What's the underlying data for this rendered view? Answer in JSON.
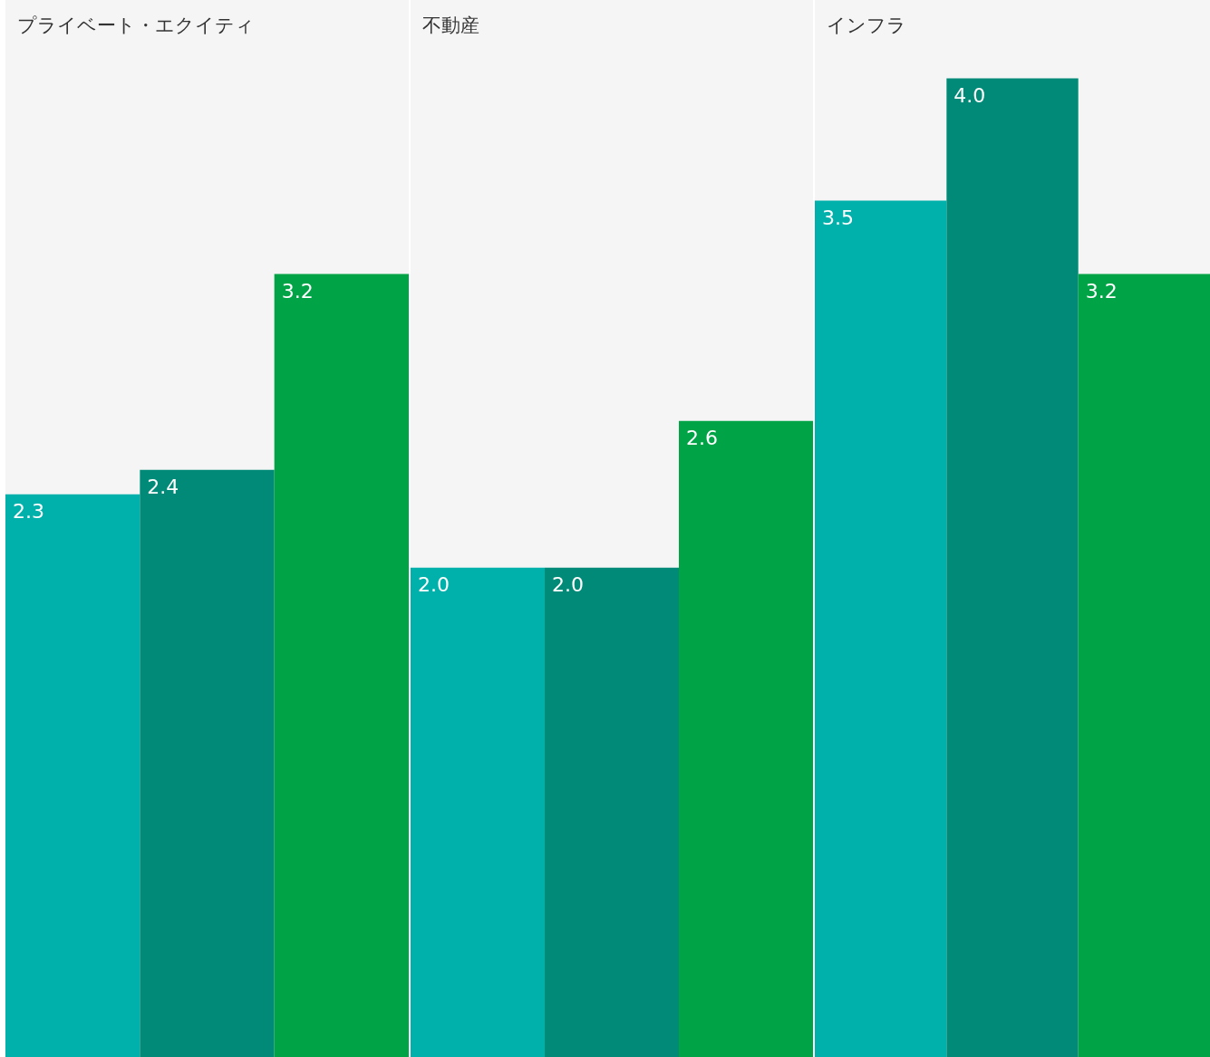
{
  "chart_data": [
    {
      "type": "bar",
      "title": "プライベート・エクイティ",
      "categories": [
        null,
        null,
        null
      ],
      "values": [
        2.3,
        2.4,
        3.2
      ],
      "value_labels": [
        "2.3",
        "2.4",
        "3.2"
      ],
      "colors": [
        "#00b0aa",
        "#008a77",
        "#00a346"
      ],
      "ylim": [
        0,
        4.32
      ]
    },
    {
      "type": "bar",
      "title": "不動産",
      "categories": [
        null,
        null,
        null
      ],
      "values": [
        2.0,
        2.0,
        2.6
      ],
      "value_labels": [
        "2.0",
        "2.0",
        "2.6"
      ],
      "colors": [
        "#00b0aa",
        "#008a77",
        "#00a346"
      ],
      "ylim": [
        0,
        4.32
      ]
    },
    {
      "type": "bar",
      "title": "インフラ",
      "categories": [
        null,
        null,
        null
      ],
      "values": [
        3.5,
        4.0,
        3.2
      ],
      "value_labels": [
        "3.5",
        "4.0",
        "3.2"
      ],
      "colors": [
        "#00b0aa",
        "#008a77",
        "#00a346"
      ],
      "ylim": [
        0,
        4.32
      ]
    }
  ]
}
